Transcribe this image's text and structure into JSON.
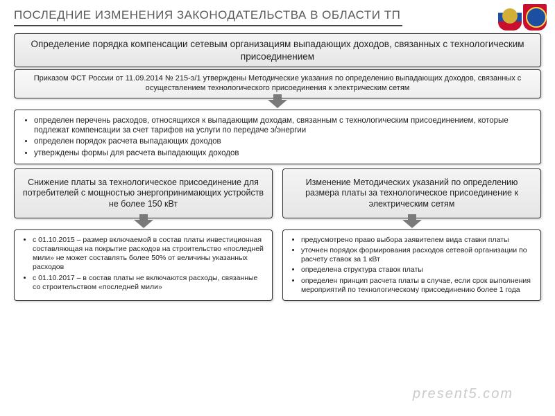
{
  "page_title": "ПОСЛЕДНИЕ ИЗМЕНЕНИЯ ЗАКОНОДАТЕЛЬСТВА В ОБЛАСТИ ТП",
  "section1": {
    "header": "Определение порядка компенсации сетевым организациям выпадающих доходов, связанных с технологическим присоединением",
    "subheader": "Приказом ФСТ России от 11.09.2014 № 215-э/1 утверждены Методические указания по определению выпадающих доходов, связанных с осуществлением технологического присоединения к электрическим сетям",
    "items": [
      "определен перечень расходов, относящихся к выпадающим доходам, связанным с технологическим присоединением, которые подлежат компенсации за счет тарифов на услуги по передаче э/энергии",
      "определен порядок расчета выпадающих доходов",
      "утверждены формы для расчета выпадающих доходов"
    ]
  },
  "left": {
    "header": "Снижение платы за технологическое присоединение для потребителей с мощностью энергопринимающих устройств не более 150 кВт",
    "items": [
      "с 01.10.2015 – размер включаемой в состав платы инвестиционная составляющая на покрытие расходов на строительство «последней мили» не может составлять более 50% от величины указанных расходов",
      "с 01.10.2017 – в состав платы не включаются расходы, связанные со строительством «последней мили»"
    ]
  },
  "right": {
    "header": "Изменение Методических указаний по определению размера платы за технологическое присоединение к электрическим сетям",
    "items": [
      "предусмотрено право выбора заявителем вида ставки платы",
      "уточнен порядок формирования расходов сетевой организации по расчету ставок за 1 кВт",
      "определена структура ставок платы",
      "определен принцип расчета платы в случае, если срок выполнения мероприятий по технологическому присоединению более 1 года"
    ]
  },
  "watermark": "present5.com",
  "colors": {
    "title_color": "#5a5a5a",
    "box_border": "#333333",
    "arrow_color": "#7a7a7a",
    "grad_light": "#f4f4f4",
    "grad_dark": "#e6e6e6"
  }
}
